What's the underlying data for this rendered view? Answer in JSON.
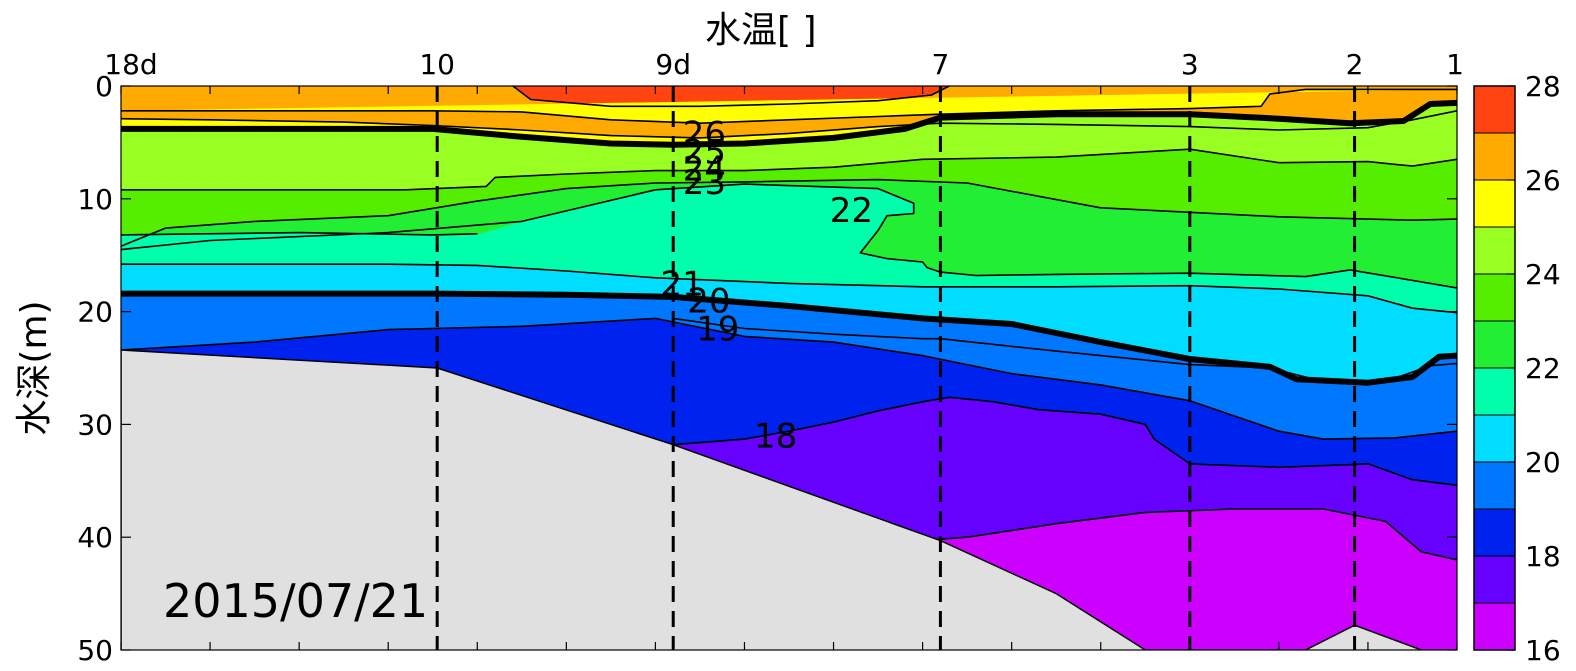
{
  "chart_data": {
    "type": "heatmap",
    "title": "水温[    ]",
    "ylabel": "水深(m)",
    "date": "2015/07/21",
    "stations": [
      {
        "label": "18d",
        "x": 0
      },
      {
        "label": "10",
        "x": 3.55
      },
      {
        "label": "9d",
        "x": 6.2
      },
      {
        "label": "7",
        "x": 9.2
      },
      {
        "label": "3",
        "x": 12.0
      },
      {
        "label": "2",
        "x": 13.85
      },
      {
        "label": "1",
        "x": 15.0
      }
    ],
    "xlim": [
      0,
      15
    ],
    "ylim": [
      0,
      50
    ],
    "yticks": [
      0,
      10,
      20,
      30,
      40,
      50
    ],
    "y_reversed": true,
    "colorbar": {
      "ticks": [
        16,
        18,
        20,
        22,
        24,
        26,
        28
      ],
      "levels": [
        16,
        17,
        18,
        19,
        20,
        21,
        22,
        23,
        24,
        25,
        26,
        27,
        28
      ],
      "colors": [
        "#cc00ff",
        "#6600ff",
        "#0022ee",
        "#0077ff",
        "#00ddff",
        "#00ffaa",
        "#22ee33",
        "#55ee00",
        "#99ff22",
        "#ffff00",
        "#ffaa00",
        "#ff4411"
      ]
    },
    "bold_contours": [
      26,
      21
    ],
    "contour_labels": [
      {
        "text": "26",
        "x": 6.55,
        "y": 4.2
      },
      {
        "text": "25",
        "x": 6.55,
        "y": 5.8
      },
      {
        "text": "24",
        "x": 6.55,
        "y": 7.3
      },
      {
        "text": "23",
        "x": 6.55,
        "y": 8.5
      },
      {
        "text": "22",
        "x": 8.2,
        "y": 11.0
      },
      {
        "text": "21",
        "x": 6.3,
        "y": 17.5
      },
      {
        "text": "20",
        "x": 6.6,
        "y": 19.0
      },
      {
        "text": "19",
        "x": 6.7,
        "y": 21.5
      },
      {
        "text": "18",
        "x": 7.35,
        "y": 31.0
      }
    ],
    "contours": {
      "t27": [
        [
          4.4,
          0
        ],
        [
          4.6,
          1.2
        ],
        [
          5.5,
          1.8
        ],
        [
          6.5,
          1.8
        ],
        [
          7.5,
          1.6
        ],
        [
          8.5,
          1.3
        ],
        [
          9.1,
          0.8
        ],
        [
          9.3,
          0
        ]
      ],
      "t26b": [
        [
          0,
          2.2
        ],
        [
          3.5,
          2.2
        ],
        [
          4.5,
          2.3
        ],
        [
          5.5,
          3.0
        ],
        [
          6.5,
          3.3
        ],
        [
          7.5,
          3.0
        ],
        [
          8.5,
          2.7
        ],
        [
          9.2,
          2.5
        ],
        [
          10.5,
          2.2
        ],
        [
          12.0,
          2.0
        ],
        [
          12.8,
          1.8
        ],
        [
          12.9,
          0.7
        ],
        [
          13.3,
          0.3
        ],
        [
          15,
          0.3
        ]
      ],
      "t26": [
        [
          0,
          3.8
        ],
        [
          3.5,
          3.8
        ],
        [
          4.5,
          4.5
        ],
        [
          5.5,
          5.1
        ],
        [
          6.2,
          5.2
        ],
        [
          7.0,
          5.1
        ],
        [
          8.0,
          4.6
        ],
        [
          8.8,
          3.8
        ],
        [
          9.2,
          2.8
        ],
        [
          10.5,
          2.5
        ],
        [
          12.0,
          2.5
        ],
        [
          13.0,
          2.9
        ],
        [
          13.8,
          3.3
        ],
        [
          14.4,
          3.1
        ],
        [
          14.7,
          1.6
        ],
        [
          15,
          1.5
        ]
      ],
      "t25": [
        [
          0,
          2.9
        ],
        [
          1.0,
          3.0
        ],
        [
          2.5,
          3.2
        ],
        [
          3.5,
          3.5
        ],
        [
          4.5,
          3.9
        ],
        [
          5.5,
          4.4
        ],
        [
          6.5,
          4.6
        ],
        [
          7.5,
          4.2
        ],
        [
          8.5,
          3.6
        ],
        [
          9.2,
          3.3
        ],
        [
          10.5,
          3.4
        ],
        [
          12.0,
          3.6
        ],
        [
          13.0,
          3.9
        ],
        [
          14.0,
          3.7
        ],
        [
          14.5,
          3.0
        ],
        [
          15,
          2.2
        ]
      ],
      "t24": [
        [
          0,
          9.2
        ],
        [
          3.2,
          9.2
        ],
        [
          4.1,
          8.9
        ],
        [
          4.2,
          8.1
        ],
        [
          5.0,
          7.8
        ],
        [
          6.0,
          7.5
        ],
        [
          7.0,
          7.5
        ],
        [
          8.0,
          7.2
        ],
        [
          9.0,
          6.5
        ],
        [
          10.5,
          6.3
        ],
        [
          12.0,
          5.6
        ],
        [
          13.0,
          6.8
        ],
        [
          14.0,
          6.7
        ],
        [
          14.5,
          7.1
        ],
        [
          15,
          6.5
        ]
      ],
      "t23": [
        [
          0,
          14.2
        ],
        [
          0.5,
          12.6
        ],
        [
          1.5,
          12.0
        ],
        [
          3.0,
          11.5
        ],
        [
          4.0,
          10.2
        ],
        [
          5.0,
          9.1
        ],
        [
          6.0,
          8.6
        ],
        [
          7.0,
          8.5
        ],
        [
          8.5,
          8.3
        ],
        [
          9.5,
          8.6
        ],
        [
          11.0,
          10.8
        ],
        [
          13.0,
          11.6
        ],
        [
          14.5,
          11.9
        ],
        [
          15,
          11.8
        ]
      ],
      "t22b": [
        [
          0,
          14.5
        ],
        [
          1.0,
          13.7
        ],
        [
          3.0,
          13.0
        ],
        [
          4.5,
          12.0
        ],
        [
          6.0,
          9.2
        ],
        [
          7.0,
          8.7
        ],
        [
          8.5,
          9.1
        ],
        [
          8.9,
          10.4
        ],
        [
          8.9,
          11.3
        ],
        [
          8.6,
          11.5
        ],
        [
          8.5,
          12.8
        ],
        [
          8.3,
          14.8
        ],
        [
          8.6,
          15.3
        ],
        [
          9.0,
          15.6
        ],
        [
          9.05,
          16.1
        ],
        [
          9.2,
          16.5
        ],
        [
          9.6,
          16.8
        ],
        [
          10.5,
          16.7
        ],
        [
          12.0,
          16.6
        ],
        [
          13.3,
          16.9
        ],
        [
          13.8,
          16.3
        ],
        [
          15,
          17.9
        ]
      ],
      "t22": [
        [
          0,
          13.2
        ],
        [
          2.0,
          13.0
        ],
        [
          3.5,
          13.2
        ],
        [
          4.0,
          13.1
        ]
      ],
      "t21b": [
        [
          0,
          15.8
        ],
        [
          3.0,
          15.8
        ],
        [
          4.0,
          15.9
        ],
        [
          5.0,
          16.4
        ],
        [
          6.0,
          17.0
        ],
        [
          7.5,
          17.5
        ],
        [
          9.0,
          17.8
        ],
        [
          10.5,
          17.8
        ],
        [
          12.0,
          17.7
        ],
        [
          13.0,
          18.0
        ],
        [
          14.0,
          18.6
        ],
        [
          14.5,
          19.7
        ],
        [
          15,
          20.1
        ]
      ],
      "t21": [
        [
          0,
          18.4
        ],
        [
          3.5,
          18.4
        ],
        [
          5.0,
          18.5
        ],
        [
          6.2,
          18.7
        ],
        [
          7.5,
          19.5
        ],
        [
          9.0,
          20.6
        ],
        [
          10.0,
          21.1
        ],
        [
          11.0,
          22.7
        ],
        [
          12.0,
          24.2
        ],
        [
          12.9,
          24.9
        ],
        [
          13.2,
          26.0
        ],
        [
          14.0,
          26.3
        ],
        [
          14.5,
          25.8
        ],
        [
          14.8,
          24.0
        ],
        [
          15,
          23.9
        ]
      ],
      "t20": [
        [
          6.2,
          20.6
        ],
        [
          7.0,
          21.5
        ],
        [
          8.0,
          22.0
        ],
        [
          9.0,
          22.4
        ],
        [
          9.2,
          22.4
        ],
        [
          10.5,
          23.5
        ],
        [
          11.5,
          24.3
        ],
        [
          12.0,
          24.7
        ],
        [
          12.9,
          25.0
        ],
        [
          13.5,
          26.2
        ],
        [
          14.2,
          26.2
        ],
        [
          14.7,
          24.8
        ],
        [
          15,
          24.6
        ]
      ],
      "t19": [
        [
          0,
          23.4
        ],
        [
          1.5,
          22.7
        ],
        [
          3.0,
          21.6
        ],
        [
          4.5,
          21.3
        ],
        [
          6.0,
          20.6
        ],
        [
          7.0,
          22.2
        ],
        [
          8.0,
          22.7
        ],
        [
          9.0,
          23.9
        ],
        [
          10.0,
          25.5
        ],
        [
          11.0,
          26.5
        ],
        [
          12.0,
          27.9
        ],
        [
          13.0,
          30.6
        ],
        [
          13.5,
          31.3
        ],
        [
          14.3,
          31.2
        ],
        [
          15,
          30.6
        ]
      ],
      "t18": [
        [
          6.2,
          31.8
        ],
        [
          7.0,
          31.3
        ],
        [
          7.5,
          30.6
        ],
        [
          8.0,
          29.8
        ],
        [
          8.5,
          28.8
        ],
        [
          9.0,
          28.0
        ],
        [
          9.3,
          27.6
        ],
        [
          9.8,
          28.0
        ],
        [
          10.3,
          28.7
        ],
        [
          11.0,
          29.1
        ],
        [
          11.5,
          30.0
        ],
        [
          11.6,
          31.3
        ],
        [
          12.0,
          33.5
        ],
        [
          13.0,
          33.8
        ],
        [
          14.0,
          33.5
        ],
        [
          14.5,
          34.9
        ],
        [
          15,
          35.4
        ]
      ],
      "t17": [
        [
          8.3,
          40.7
        ],
        [
          9.5,
          40.0
        ],
        [
          10.5,
          38.8
        ],
        [
          11.5,
          37.8
        ],
        [
          12.5,
          37.5
        ],
        [
          13.0,
          37.5
        ],
        [
          13.5,
          37.5
        ],
        [
          14.2,
          38.6
        ],
        [
          14.6,
          41.3
        ],
        [
          15,
          42.0
        ]
      ],
      "bottom": [
        [
          0,
          23.4
        ],
        [
          3.55,
          25.0
        ],
        [
          6.2,
          31.8
        ],
        [
          9.2,
          40.3
        ],
        [
          10.5,
          45.0
        ],
        [
          11.5,
          50
        ],
        [
          13.3,
          50
        ],
        [
          13.85,
          47.8
        ],
        [
          14.6,
          50
        ],
        [
          15,
          50
        ]
      ]
    }
  }
}
